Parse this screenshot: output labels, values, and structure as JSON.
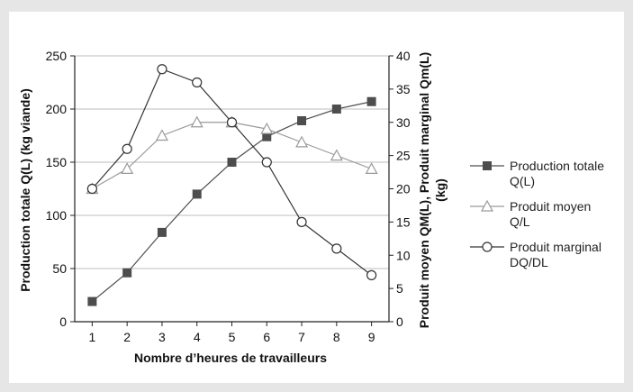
{
  "chart_data": {
    "type": "line",
    "x": [
      1,
      2,
      3,
      4,
      5,
      6,
      7,
      8,
      9
    ],
    "xlabel": "Nombre d’heures de travailleurs",
    "ylabel_left": "Production totale Q(L) (kg viande)",
    "ylabel_right": [
      "Produit moyen QM(L), Produit marginal Qm(L)",
      "(kg)"
    ],
    "ylim_left": [
      0,
      250
    ],
    "yticks_left": [
      0,
      50,
      100,
      150,
      200,
      250
    ],
    "ylim_right": [
      0,
      40
    ],
    "yticks_right": [
      0,
      5,
      10,
      15,
      20,
      25,
      30,
      35,
      40
    ],
    "grid": "horizontal",
    "legend_position": "right",
    "series": [
      {
        "name": "Production totale Q(L)",
        "name_lines": [
          "Production totale",
          "Q(L)"
        ],
        "axis": "left",
        "marker": "filled-square",
        "color": "#4d4d4d",
        "values": [
          19,
          46,
          84,
          120,
          150,
          174,
          189,
          200,
          207
        ]
      },
      {
        "name": "Produit moyen Q/L",
        "name_lines": [
          "Produit moyen",
          "Q/L"
        ],
        "axis": "right",
        "marker": "open-triangle",
        "color": "#9a9a9a",
        "values": [
          20,
          23,
          28,
          30,
          30,
          29,
          27,
          25,
          23
        ]
      },
      {
        "name": "Produit marginal DQ/DL",
        "name_lines": [
          "Produit marginal",
          "DQ/DL"
        ],
        "axis": "right",
        "marker": "open-circle",
        "color": "#333333",
        "values": [
          20,
          26,
          38,
          36,
          30,
          24,
          15,
          11,
          7
        ]
      }
    ]
  }
}
